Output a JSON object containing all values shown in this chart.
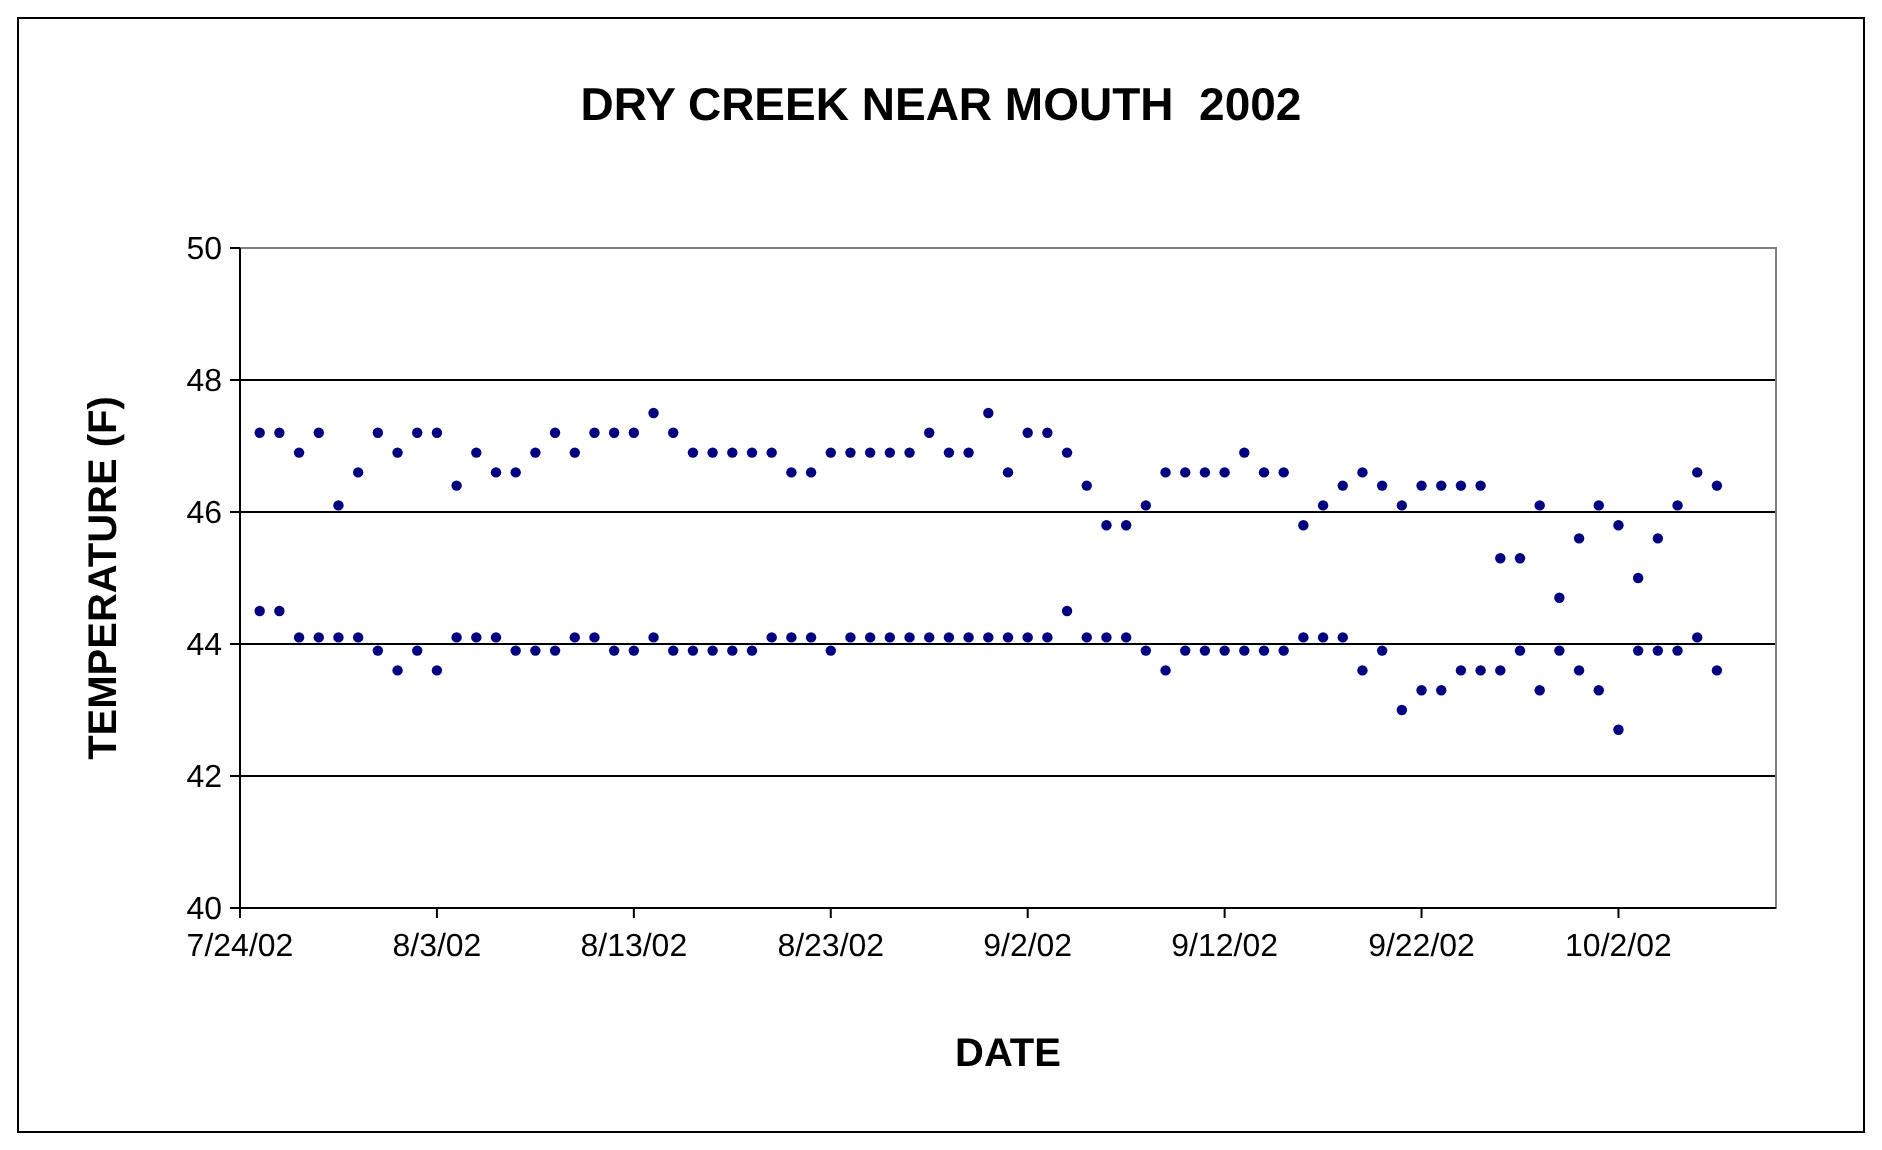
{
  "chart_data": {
    "type": "scatter",
    "title": "DRY CREEK NEAR MOUTH  2002",
    "xlabel": "DATE",
    "ylabel": "TEMPERATURE (F)",
    "xlim": [
      "2002-07-24",
      "2002-10-10"
    ],
    "xticks": [
      {
        "value": "2002-07-24",
        "label": "7/24/02"
      },
      {
        "value": "2002-08-03",
        "label": "8/3/02"
      },
      {
        "value": "2002-08-13",
        "label": "8/13/02"
      },
      {
        "value": "2002-08-23",
        "label": "8/23/02"
      },
      {
        "value": "2002-09-02",
        "label": "9/2/02"
      },
      {
        "value": "2002-09-12",
        "label": "9/12/02"
      },
      {
        "value": "2002-09-22",
        "label": "9/22/02"
      },
      {
        "value": "2002-10-02",
        "label": "10/2/02"
      }
    ],
    "ylim": [
      40,
      50
    ],
    "yticks": [
      40,
      42,
      44,
      46,
      48,
      50
    ],
    "grid": "y",
    "marker": "circle",
    "color": "#000080",
    "x": [
      "2002-07-25",
      "2002-07-25",
      "2002-07-26",
      "2002-07-26",
      "2002-07-27",
      "2002-07-27",
      "2002-07-28",
      "2002-07-28",
      "2002-07-29",
      "2002-07-29",
      "2002-07-30",
      "2002-07-30",
      "2002-07-31",
      "2002-07-31",
      "2002-08-01",
      "2002-08-01",
      "2002-08-02",
      "2002-08-02",
      "2002-08-03",
      "2002-08-03",
      "2002-08-04",
      "2002-08-04",
      "2002-08-05",
      "2002-08-05",
      "2002-08-06",
      "2002-08-06",
      "2002-08-07",
      "2002-08-07",
      "2002-08-08",
      "2002-08-08",
      "2002-08-09",
      "2002-08-09",
      "2002-08-10",
      "2002-08-10",
      "2002-08-11",
      "2002-08-11",
      "2002-08-12",
      "2002-08-12",
      "2002-08-13",
      "2002-08-13",
      "2002-08-14",
      "2002-08-14",
      "2002-08-15",
      "2002-08-15",
      "2002-08-16",
      "2002-08-16",
      "2002-08-17",
      "2002-08-17",
      "2002-08-18",
      "2002-08-18",
      "2002-08-19",
      "2002-08-19",
      "2002-08-20",
      "2002-08-20",
      "2002-08-21",
      "2002-08-21",
      "2002-08-22",
      "2002-08-22",
      "2002-08-23",
      "2002-08-23",
      "2002-08-24",
      "2002-08-24",
      "2002-08-25",
      "2002-08-25",
      "2002-08-26",
      "2002-08-26",
      "2002-08-27",
      "2002-08-27",
      "2002-08-28",
      "2002-08-28",
      "2002-08-29",
      "2002-08-29",
      "2002-08-30",
      "2002-08-30",
      "2002-08-31",
      "2002-08-31",
      "2002-09-01",
      "2002-09-01",
      "2002-09-02",
      "2002-09-02",
      "2002-09-03",
      "2002-09-03",
      "2002-09-04",
      "2002-09-04",
      "2002-09-05",
      "2002-09-05",
      "2002-09-06",
      "2002-09-06",
      "2002-09-07",
      "2002-09-07",
      "2002-09-08",
      "2002-09-08",
      "2002-09-09",
      "2002-09-09",
      "2002-09-10",
      "2002-09-10",
      "2002-09-11",
      "2002-09-11",
      "2002-09-12",
      "2002-09-12",
      "2002-09-13",
      "2002-09-13",
      "2002-09-14",
      "2002-09-14",
      "2002-09-15",
      "2002-09-15",
      "2002-09-16",
      "2002-09-16",
      "2002-09-17",
      "2002-09-17",
      "2002-09-18",
      "2002-09-18",
      "2002-09-19",
      "2002-09-19",
      "2002-09-20",
      "2002-09-20",
      "2002-09-21",
      "2002-09-21",
      "2002-09-22",
      "2002-09-22",
      "2002-09-23",
      "2002-09-23",
      "2002-09-24",
      "2002-09-24",
      "2002-09-25",
      "2002-09-25",
      "2002-09-26",
      "2002-09-26",
      "2002-09-27",
      "2002-09-27",
      "2002-09-28",
      "2002-09-28",
      "2002-09-29",
      "2002-09-29",
      "2002-09-30",
      "2002-09-30",
      "2002-10-01",
      "2002-10-01",
      "2002-10-02",
      "2002-10-02",
      "2002-10-03",
      "2002-10-03",
      "2002-10-04",
      "2002-10-04",
      "2002-10-05",
      "2002-10-05",
      "2002-10-06",
      "2002-10-06",
      "2002-10-07",
      "2002-10-07"
    ],
    "values": [
      47.2,
      44.5,
      47.2,
      44.5,
      46.9,
      44.1,
      47.2,
      44.1,
      46.1,
      44.1,
      46.6,
      44.1,
      47.2,
      43.9,
      46.9,
      43.6,
      47.2,
      43.9,
      47.2,
      43.6,
      46.4,
      44.1,
      46.9,
      44.1,
      46.6,
      44.1,
      46.6,
      43.9,
      46.9,
      43.9,
      47.2,
      43.9,
      46.9,
      44.1,
      47.2,
      44.1,
      47.2,
      43.9,
      47.2,
      43.9,
      47.5,
      44.1,
      47.2,
      43.9,
      46.9,
      43.9,
      46.9,
      43.9,
      46.9,
      43.9,
      46.9,
      43.9,
      46.9,
      44.1,
      46.6,
      44.1,
      46.6,
      44.1,
      46.9,
      43.9,
      46.9,
      44.1,
      46.9,
      44.1,
      46.9,
      44.1,
      46.9,
      44.1,
      47.2,
      44.1,
      46.9,
      44.1,
      46.9,
      44.1,
      47.5,
      44.1,
      46.6,
      44.1,
      47.2,
      44.1,
      47.2,
      44.1,
      46.9,
      44.5,
      46.4,
      44.1,
      45.8,
      44.1,
      45.8,
      44.1,
      46.1,
      43.9,
      46.6,
      43.6,
      46.6,
      43.9,
      46.6,
      43.9,
      46.6,
      43.9,
      46.9,
      43.9,
      46.6,
      43.9,
      46.6,
      43.9,
      45.8,
      44.1,
      46.1,
      44.1,
      46.4,
      44.1,
      46.6,
      43.6,
      46.4,
      43.9,
      46.1,
      43.0,
      46.4,
      43.3,
      46.4,
      43.3,
      46.4,
      43.6,
      46.4,
      43.6,
      45.3,
      43.6,
      45.3,
      43.9,
      46.1,
      43.3,
      44.7,
      43.9,
      45.6,
      43.6,
      46.1,
      43.3,
      45.8,
      42.7,
      45.0,
      43.9,
      45.6,
      43.9,
      46.1,
      43.9,
      46.6,
      44.1,
      46.4,
      43.6
    ]
  }
}
